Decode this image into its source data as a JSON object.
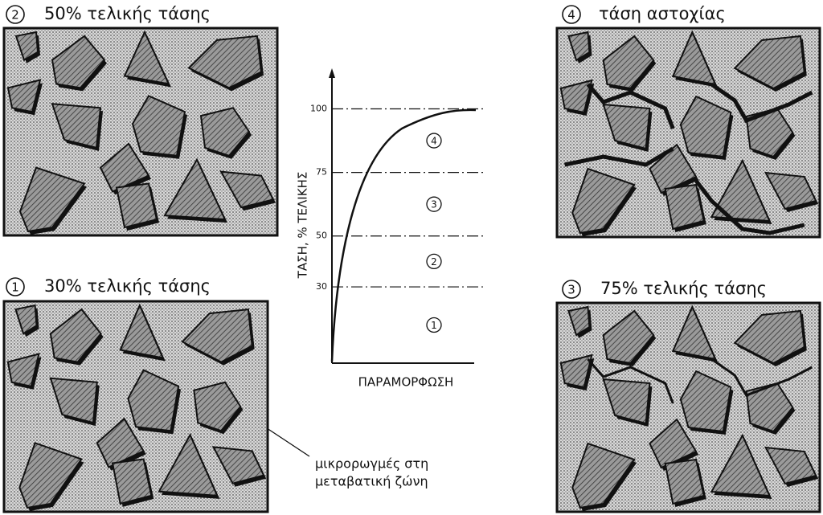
{
  "panels": [
    {
      "number": "2",
      "caption": "50% τελικής τάσης"
    },
    {
      "number": "1",
      "caption": "30% τελικής τάσης"
    },
    {
      "number": "4",
      "caption": "τάση αστοχίας"
    },
    {
      "number": "3",
      "caption": "75% τελικής τάσης"
    }
  ],
  "chart": {
    "y_label": "ΤΑΣΗ, % ΤΕΛΙΚΗΣ",
    "x_label": "ΠΑΡΑΜΟΡΦΩΣΗ",
    "ylim": [
      0,
      115
    ],
    "yticks": [
      30,
      50,
      75,
      100
    ],
    "regions": [
      "1",
      "2",
      "3",
      "4"
    ]
  },
  "annotation": {
    "lines": [
      "μικρορωγμές στη",
      "μεταβατική ζώνη"
    ]
  }
}
